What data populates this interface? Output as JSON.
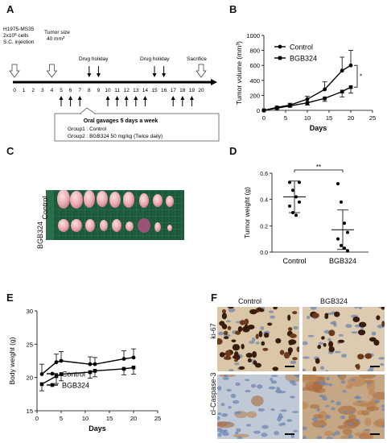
{
  "panels": {
    "A": "A",
    "B": "B",
    "C": "C",
    "D": "D",
    "E": "E",
    "F": "F"
  },
  "timeline": {
    "cells_line1": "H1975-MS35",
    "cells_line2": "2x10",
    "cells_line2_sup": "6",
    "cells_line2_tail": " cells",
    "cells_line3": "S.C. injection",
    "tumor_line1": "Tumor size",
    "tumor_line2": "40 mm",
    "tumor_line2_sup": "3",
    "holiday1": "Drug holiday",
    "holiday2": "Drug holiday",
    "sacrifice": "Sacrifice",
    "days": [
      "0",
      "1",
      "2",
      "3",
      "4",
      "5",
      "6",
      "7",
      "8",
      "9",
      "10",
      "11",
      "12",
      "13",
      "14",
      "15",
      "16",
      "17",
      "18",
      "19",
      "20"
    ],
    "holiday_days": [
      8,
      9,
      15,
      16
    ],
    "gavage_days": [
      5,
      6,
      7,
      10,
      11,
      12,
      13,
      14,
      17,
      18,
      19
    ],
    "box_title": "Oral gavages 5 days a week",
    "group1": "Group1 : Control",
    "group2": "Group2 : BGB324 50 mg/kg (Twice daily)"
  },
  "photoC": {
    "row1": "Control",
    "row2": "BGB324"
  },
  "photoF": {
    "col1": "Control",
    "col2": "BGB324",
    "row1": "ki-67",
    "row2": "cl-Caspase-3"
  },
  "chart_data": [
    {
      "id": "B",
      "type": "line",
      "xlabel": "Days",
      "ylabel": "Tumor volume (mm³)",
      "xlim": [
        0,
        25
      ],
      "ylim": [
        0,
        1000
      ],
      "xticks": [
        "0",
        "5",
        "10",
        "15",
        "20",
        "25"
      ],
      "yticks": [
        "0",
        "200",
        "400",
        "600",
        "800",
        "1000"
      ],
      "significance": "*",
      "series": [
        {
          "name": "Control",
          "marker": "circle",
          "x": [
            0,
            3,
            6,
            10,
            14,
            18,
            20
          ],
          "y": [
            0,
            40,
            70,
            150,
            280,
            530,
            600
          ],
          "err": [
            0,
            15,
            25,
            40,
            100,
            180,
            200
          ]
        },
        {
          "name": "BGB324",
          "marker": "square",
          "x": [
            0,
            3,
            6,
            10,
            14,
            18,
            20
          ],
          "y": [
            0,
            30,
            60,
            100,
            160,
            250,
            310
          ],
          "err": [
            0,
            10,
            15,
            30,
            40,
            70,
            80
          ]
        }
      ]
    },
    {
      "id": "D",
      "type": "scatter",
      "ylabel": "Tumor weight (g)",
      "ylim": [
        0,
        0.6
      ],
      "yticks": [
        "0.0",
        "0.2",
        "0.4",
        "0.6"
      ],
      "categories": [
        "Control",
        "BGB324"
      ],
      "means": [
        0.42,
        0.17
      ],
      "sd": [
        0.12,
        0.15
      ],
      "significance": "**",
      "points": [
        [
          0.53,
          0.47,
          0.42,
          0.38,
          0.35,
          0.3,
          0.28,
          0.53
        ],
        [
          0.52,
          0.38,
          0.22,
          0.15,
          0.1,
          0.05,
          0.03,
          0.01
        ]
      ]
    },
    {
      "id": "E",
      "type": "line",
      "xlabel": "Days",
      "ylabel": "Body weight (g)",
      "xlim": [
        0,
        25
      ],
      "ylim": [
        15,
        30
      ],
      "xticks": [
        "0",
        "5",
        "10",
        "15",
        "20",
        "25"
      ],
      "yticks": [
        "15",
        "20",
        "25",
        "30"
      ],
      "series": [
        {
          "name": "Control",
          "marker": "circle",
          "x": [
            1,
            4,
            5,
            11,
            12,
            18,
            20
          ],
          "y": [
            20.5,
            22.3,
            22.5,
            22.0,
            22.0,
            22.8,
            23.0
          ],
          "err": [
            1.5,
            1.2,
            1.4,
            1.1,
            1.0,
            1.2,
            1.3
          ]
        },
        {
          "name": "BGB324",
          "marker": "square",
          "x": [
            1,
            4,
            5,
            11,
            12,
            18,
            20
          ],
          "y": [
            19.0,
            20.2,
            20.5,
            20.8,
            21.0,
            21.3,
            21.5
          ],
          "err": [
            1.0,
            1.1,
            1.0,
            0.9,
            0.9,
            0.9,
            1.0
          ]
        }
      ]
    }
  ]
}
